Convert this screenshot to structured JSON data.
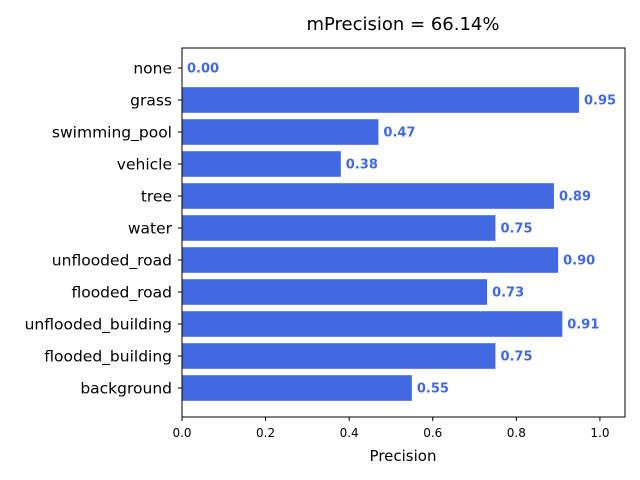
{
  "chart_data": {
    "type": "bar",
    "orientation": "horizontal",
    "title": "mPrecision = 66.14%",
    "xlabel": "Precision",
    "ylabel": "",
    "xlim": [
      0,
      1.06
    ],
    "xticks": [
      0.0,
      0.2,
      0.4,
      0.6,
      0.8,
      1.0
    ],
    "xtick_labels": [
      "0.0",
      "0.2",
      "0.4",
      "0.6",
      "0.8",
      "1.0"
    ],
    "grid": false,
    "categories": [
      "none",
      "grass",
      "swimming_pool",
      "vehicle",
      "tree",
      "water",
      "unflooded_road",
      "flooded_road",
      "unflooded_building",
      "flooded_building",
      "background"
    ],
    "values": [
      0.0,
      0.95,
      0.47,
      0.38,
      0.89,
      0.75,
      0.9,
      0.73,
      0.91,
      0.75,
      0.55
    ],
    "value_labels": [
      "0.00",
      "0.95",
      "0.47",
      "0.38",
      "0.89",
      "0.75",
      "0.90",
      "0.73",
      "0.91",
      "0.75",
      "0.55"
    ],
    "bar_color": "#4169e1",
    "label_color": "#4169e1"
  }
}
